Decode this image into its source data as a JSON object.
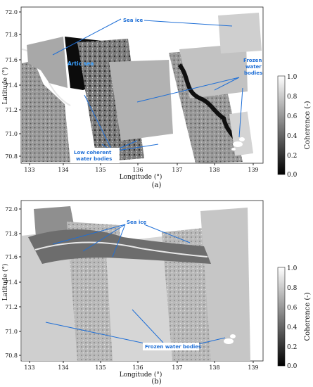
{
  "panel_a": {
    "caption": "(a)",
    "x_ticks": [
      "133",
      "134",
      "135",
      "136",
      "137",
      "138",
      "139"
    ],
    "y_ticks": [
      "72.0",
      "71.8",
      "71.6",
      "71.4",
      "71.2",
      "71.0",
      "70.8"
    ],
    "xlabel": "Longitude (°)",
    "ylabel": "Latitude (°)",
    "annotations": {
      "sea_ice": "Sea ice",
      "artic_sea": "Artic sea",
      "frozen_1": "Frozen",
      "frozen_2": "water",
      "frozen_3": "bodies",
      "low_1": "Low coherent",
      "low_2": "water bodies"
    },
    "colorbar": {
      "ticks": [
        "1.0",
        "0.8",
        "0.6",
        "0.4",
        "0.2",
        "0.0"
      ],
      "label": "Coherence (-)"
    }
  },
  "panel_b": {
    "caption": "(b)",
    "x_ticks": [
      "133",
      "134",
      "135",
      "136",
      "137",
      "138",
      "139"
    ],
    "y_ticks": [
      "72.0",
      "71.8",
      "71.6",
      "71.4",
      "71.2",
      "71.0",
      "70.8"
    ],
    "xlabel": "Longitude (°)",
    "ylabel": "Latitude (°)",
    "annotations": {
      "sea_ice": "Sea ice",
      "frozen": "Frozen water bodies"
    },
    "colorbar": {
      "ticks": [
        "1.0",
        "0.8",
        "0.6",
        "0.4",
        "0.2",
        "0.0"
      ],
      "label": "Coherence (-)"
    }
  }
}
